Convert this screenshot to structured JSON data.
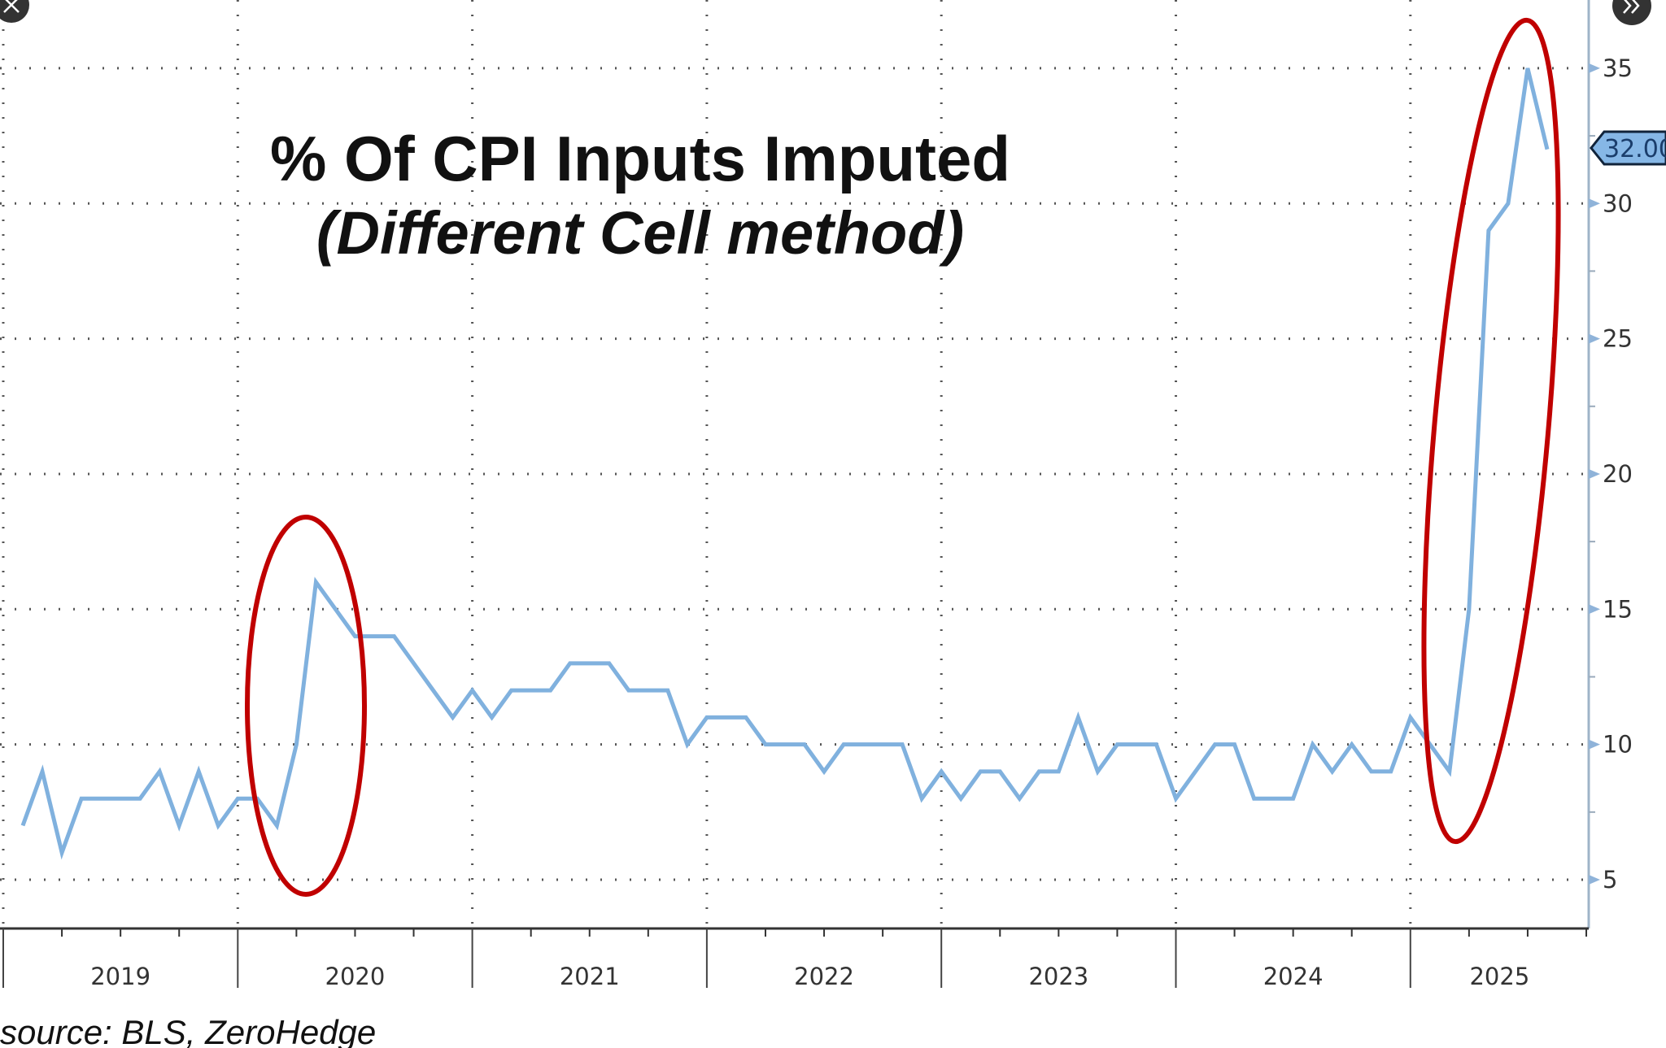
{
  "chart_data": {
    "type": "line",
    "title": "% Of CPI Inputs Imputed",
    "subtitle": "(Different Cell method)",
    "source": "source: BLS, ZeroHedge",
    "x_tick_labels": [
      "2019",
      "2020",
      "2021",
      "2022",
      "2023",
      "2024",
      "2025"
    ],
    "y_ticks": [
      5,
      10,
      15,
      20,
      25,
      30,
      35
    ],
    "ylim": [
      5,
      36
    ],
    "y_axis_side": "right",
    "grid": true,
    "series": [
      {
        "color": "#80b1de",
        "x": [
          "2019-01",
          "2019-02",
          "2019-03",
          "2019-04",
          "2019-05",
          "2019-06",
          "2019-07",
          "2019-08",
          "2019-09",
          "2019-10",
          "2019-11",
          "2019-12",
          "2020-01",
          "2020-02",
          "2020-03",
          "2020-04",
          "2020-05",
          "2020-06",
          "2020-07",
          "2020-08",
          "2020-09",
          "2020-10",
          "2020-11",
          "2020-12",
          "2021-01",
          "2021-02",
          "2021-03",
          "2021-04",
          "2021-05",
          "2021-06",
          "2021-07",
          "2021-08",
          "2021-09",
          "2021-10",
          "2021-11",
          "2021-12",
          "2022-01",
          "2022-02",
          "2022-03",
          "2022-04",
          "2022-05",
          "2022-06",
          "2022-07",
          "2022-08",
          "2022-09",
          "2022-10",
          "2022-11",
          "2022-12",
          "2023-01",
          "2023-02",
          "2023-03",
          "2023-04",
          "2023-05",
          "2023-06",
          "2023-07",
          "2023-08",
          "2023-09",
          "2023-10",
          "2023-11",
          "2023-12",
          "2024-01",
          "2024-02",
          "2024-03",
          "2024-04",
          "2024-05",
          "2024-06",
          "2024-07",
          "2024-08",
          "2024-09",
          "2024-10",
          "2024-11",
          "2024-12",
          "2025-01",
          "2025-02",
          "2025-03",
          "2025-04",
          "2025-05",
          "2025-06",
          "2025-07"
        ],
        "values": [
          7,
          9,
          6,
          8,
          8,
          8,
          8,
          9,
          7,
          9,
          7,
          8,
          8,
          7,
          10,
          16,
          15,
          14,
          14,
          14,
          13,
          12,
          11,
          12,
          11,
          12,
          12,
          12,
          13,
          13,
          13,
          12,
          12,
          12,
          10,
          11,
          11,
          11,
          10,
          10,
          10,
          9,
          10,
          10,
          10,
          10,
          8,
          9,
          8,
          9,
          9,
          8,
          9,
          9,
          11,
          9,
          10,
          10,
          10,
          8,
          9,
          10,
          10,
          8,
          8,
          8,
          10,
          9,
          10,
          9,
          9,
          11,
          10,
          9,
          15,
          29,
          30,
          35,
          32
        ]
      }
    ],
    "last_value_label": "32.00",
    "annotations": [
      {
        "type": "ellipse",
        "color": "#c00000",
        "around": "2020-04 spike"
      },
      {
        "type": "ellipse",
        "color": "#c00000",
        "around": "2025 spike"
      }
    ]
  },
  "icons": {
    "close": "close-icon",
    "expand": "double-chevron-right-icon"
  }
}
